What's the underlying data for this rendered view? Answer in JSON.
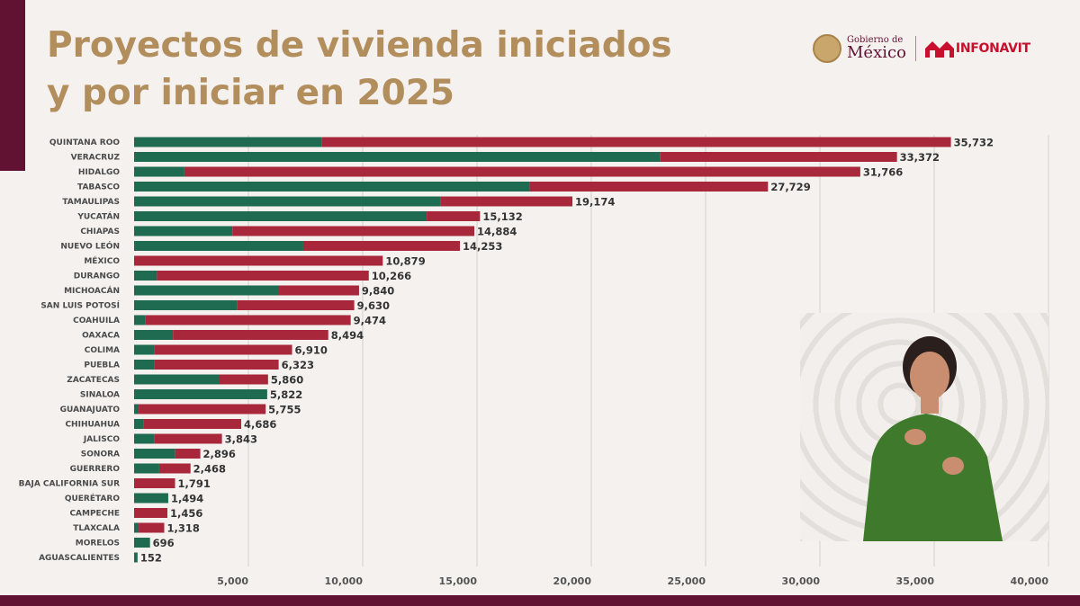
{
  "title": {
    "line1": "Proyectos de vivienda iniciados",
    "line2": "y por iniciar en 2025"
  },
  "logos": {
    "gobierno_small": "Gobierno de",
    "gobierno_big": "México",
    "infonavit": "INFONAVIT"
  },
  "colors": {
    "iniciados": "#1e6b52",
    "por_iniciar": "#a8273a",
    "accent": "#611232",
    "title": "#b38e5d"
  },
  "chart_data": {
    "type": "bar",
    "orientation": "horizontal",
    "stacked": true,
    "categories": [
      "QUINTANA ROO",
      "VERACRUZ",
      "HIDALGO",
      "TABASCO",
      "TAMAULIPAS",
      "YUCATÁN",
      "CHIAPAS",
      "NUEVO LEÓN",
      "MÉXICO",
      "DURANGO",
      "MICHOACÁN",
      "SAN LUIS POTOSÍ",
      "COAHUILA",
      "OAXACA",
      "COLIMA",
      "PUEBLA",
      "ZACATECAS",
      "SINALOA",
      "GUANAJUATO",
      "CHIHUAHUA",
      "JALISCO",
      "SONORA",
      "GUERRERO",
      "BAJA CALIFORNIA SUR",
      "QUERÉTARO",
      "CAMPECHE",
      "TLAXCALA",
      "MORELOS",
      "AGUASCALIENTES"
    ],
    "totals": [
      35732,
      33372,
      31766,
      27729,
      19174,
      15132,
      14884,
      14253,
      10879,
      10266,
      9840,
      9630,
      9474,
      8494,
      6910,
      6323,
      5860,
      5822,
      5755,
      4686,
      3843,
      2896,
      2468,
      1791,
      1494,
      1456,
      1318,
      696,
      152
    ],
    "total_labels": [
      "35,732",
      "33,372",
      "31,766",
      "27,729",
      "19,174",
      "15,132",
      "14,884",
      "14,253",
      "10,879",
      "10,266",
      "9,840",
      "9,630",
      "9,474",
      "8,494",
      "6,910",
      "6,323",
      "5,860",
      "5,822",
      "5,755",
      "4,686",
      "3,843",
      "2,896",
      "2,468",
      "1,791",
      "1,494",
      "1,456",
      "1,318",
      "696",
      "152"
    ],
    "series": [
      {
        "name": "Iniciados",
        "color": "#1e6b52",
        "values": [
          8200,
          23000,
          2200,
          17300,
          13400,
          12800,
          4300,
          7400,
          0,
          1000,
          6300,
          4500,
          500,
          1700,
          900,
          900,
          3700,
          5822,
          200,
          400,
          900,
          1800,
          1100,
          0,
          1494,
          0,
          200,
          696,
          152
        ]
      },
      {
        "name": "Por iniciar",
        "color": "#a8273a",
        "values": [
          27532,
          10372,
          29566,
          10429,
          5774,
          2332,
          10584,
          6853,
          10879,
          9266,
          3540,
          5130,
          8974,
          6794,
          6010,
          5423,
          2160,
          0,
          5555,
          4286,
          2943,
          1096,
          1368,
          1791,
          0,
          1456,
          1118,
          0,
          0
        ]
      }
    ],
    "xlim": [
      0,
      40000
    ],
    "xticks": [
      5000,
      10000,
      15000,
      20000,
      25000,
      30000,
      35000,
      40000
    ],
    "xtick_labels": [
      "5,000",
      "10,000",
      "15,000",
      "20,000",
      "25,000",
      "30,000",
      "35,000",
      "40,000"
    ],
    "grid": true,
    "legend": "none"
  }
}
